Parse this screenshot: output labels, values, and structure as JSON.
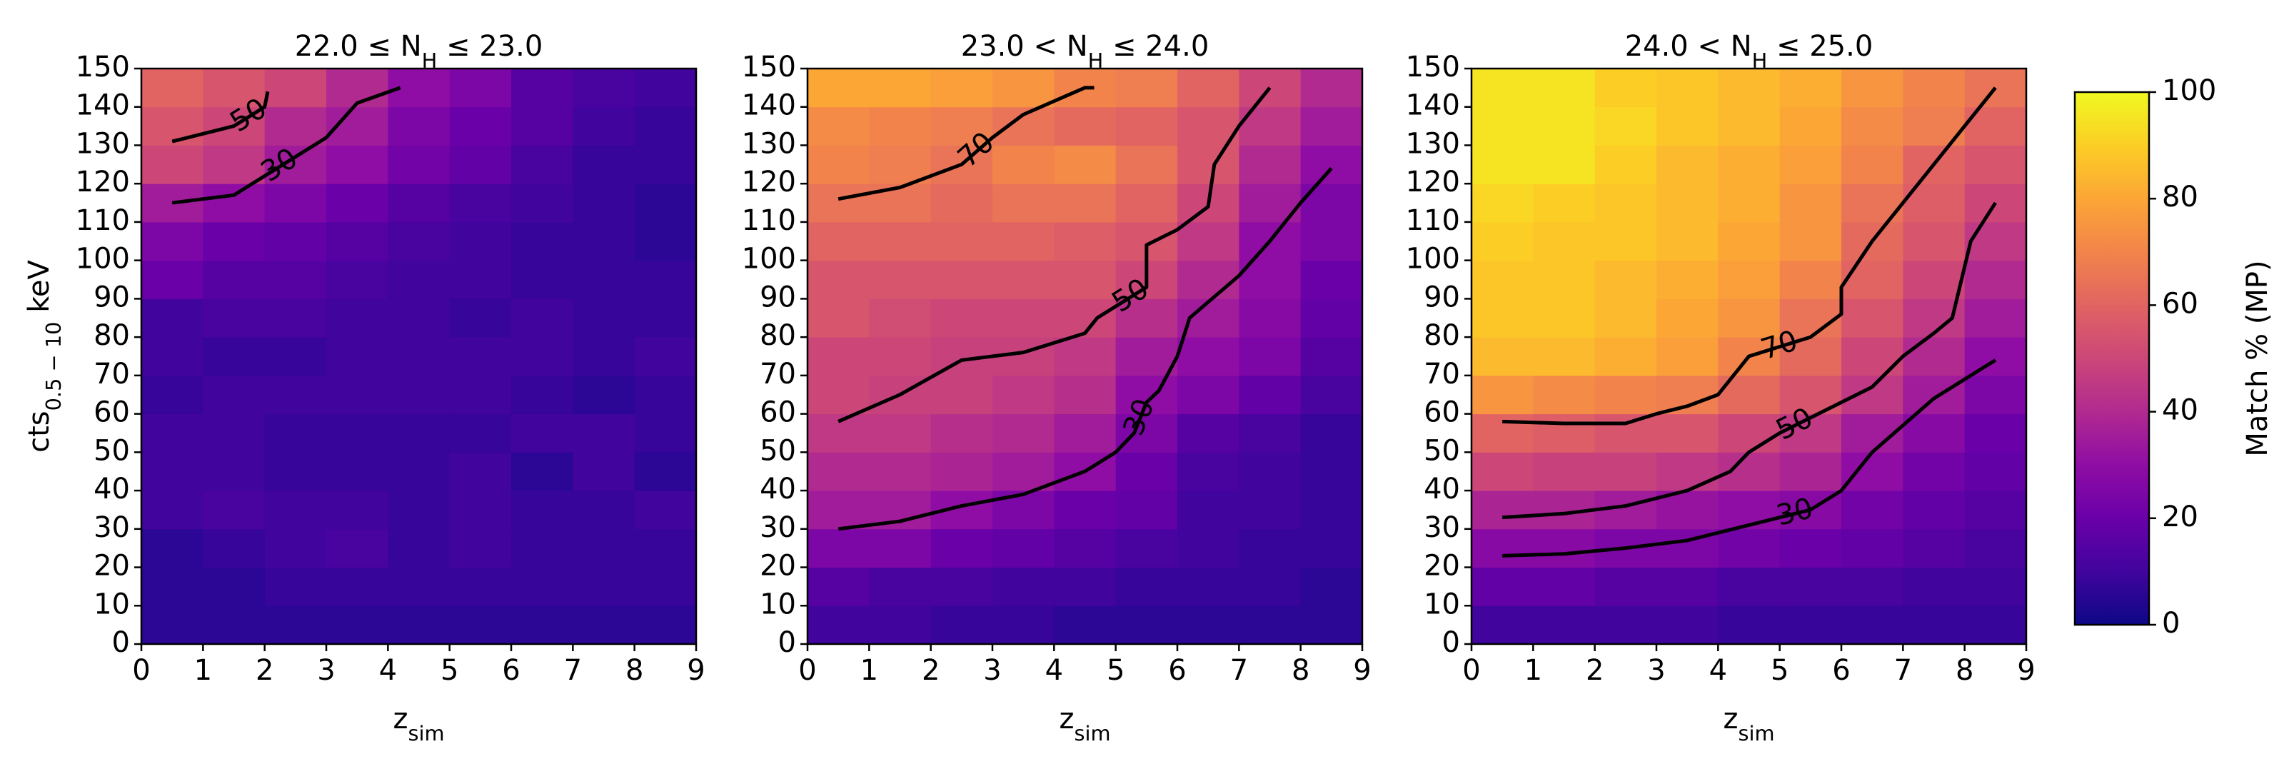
{
  "chart_data": [
    {
      "type": "heatmap",
      "title": [
        "22.0 ≤ N",
        "H",
        " ≤ 23.0"
      ],
      "xlabel": [
        "z",
        "sim"
      ],
      "ylabel": [
        "cts",
        "0.5 − 10",
        " keV"
      ],
      "xlim": [
        0,
        9
      ],
      "ylim": [
        0,
        150
      ],
      "xticks": [
        0,
        1,
        2,
        3,
        4,
        5,
        6,
        7,
        8,
        9
      ],
      "yticks": [
        0,
        10,
        20,
        30,
        40,
        50,
        60,
        70,
        80,
        90,
        100,
        110,
        120,
        130,
        140,
        150
      ],
      "colormap": "plasma",
      "clim": [
        0,
        100
      ],
      "values": [
        [
          6,
          6,
          6,
          6,
          6,
          6,
          6,
          6,
          6
        ],
        [
          6,
          6,
          8,
          8,
          8,
          8,
          8,
          8,
          8
        ],
        [
          6,
          8,
          10,
          12,
          8,
          10,
          8,
          8,
          8
        ],
        [
          10,
          12,
          10,
          10,
          8,
          10,
          8,
          8,
          10
        ],
        [
          10,
          10,
          8,
          8,
          8,
          10,
          6,
          10,
          6
        ],
        [
          10,
          10,
          8,
          8,
          8,
          8,
          10,
          10,
          8
        ],
        [
          8,
          10,
          10,
          10,
          10,
          10,
          8,
          6,
          8
        ],
        [
          10,
          8,
          8,
          10,
          10,
          10,
          10,
          8,
          10
        ],
        [
          10,
          12,
          12,
          10,
          10,
          8,
          10,
          8,
          8
        ],
        [
          20,
          15,
          15,
          12,
          10,
          10,
          8,
          8,
          8
        ],
        [
          25,
          20,
          18,
          15,
          12,
          10,
          8,
          8,
          6
        ],
        [
          35,
          30,
          25,
          20,
          15,
          12,
          10,
          8,
          6
        ],
        [
          50,
          45,
          35,
          30,
          22,
          18,
          12,
          8,
          8
        ],
        [
          55,
          50,
          40,
          35,
          25,
          20,
          15,
          10,
          8
        ],
        [
          60,
          55,
          50,
          40,
          30,
          25,
          15,
          12,
          10
        ]
      ],
      "contours": [
        {
          "level": 50,
          "x": [
            0.5,
            1.5,
            2,
            2.05
          ],
          "y": [
            131,
            135,
            140,
            144
          ]
        },
        {
          "level": 30,
          "x": [
            0.5,
            1.5,
            2,
            2.5,
            3,
            3.5,
            4.2
          ],
          "y": [
            115,
            117,
            122,
            127,
            132,
            141,
            145
          ]
        }
      ]
    },
    {
      "type": "heatmap",
      "title": [
        "23.0 < N",
        "H",
        " ≤ 24.0"
      ],
      "xlabel": [
        "z",
        "sim"
      ],
      "xlim": [
        0,
        9
      ],
      "ylim": [
        0,
        150
      ],
      "xticks": [
        0,
        1,
        2,
        3,
        4,
        5,
        6,
        7,
        8,
        9
      ],
      "yticks": [
        0,
        10,
        20,
        30,
        40,
        50,
        60,
        70,
        80,
        90,
        100,
        110,
        120,
        130,
        140,
        150
      ],
      "colormap": "plasma",
      "clim": [
        0,
        100
      ],
      "values": [
        [
          10,
          10,
          8,
          8,
          6,
          6,
          6,
          6,
          6
        ],
        [
          15,
          12,
          12,
          10,
          10,
          8,
          8,
          8,
          6
        ],
        [
          25,
          25,
          20,
          18,
          15,
          12,
          10,
          8,
          8
        ],
        [
          35,
          35,
          30,
          25,
          20,
          18,
          10,
          10,
          8
        ],
        [
          40,
          40,
          38,
          35,
          30,
          20,
          12,
          10,
          8
        ],
        [
          45,
          45,
          42,
          40,
          35,
          25,
          15,
          12,
          8
        ],
        [
          50,
          48,
          48,
          45,
          42,
          30,
          25,
          18,
          12
        ],
        [
          50,
          50,
          48,
          48,
          45,
          35,
          30,
          25,
          15
        ],
        [
          55,
          52,
          50,
          50,
          50,
          42,
          35,
          28,
          18
        ],
        [
          55,
          55,
          55,
          55,
          55,
          50,
          40,
          30,
          20
        ],
        [
          60,
          60,
          60,
          60,
          58,
          55,
          45,
          30,
          25
        ],
        [
          65,
          65,
          62,
          65,
          65,
          60,
          50,
          35,
          25
        ],
        [
          70,
          68,
          65,
          70,
          72,
          65,
          55,
          40,
          30
        ],
        [
          72,
          70,
          68,
          65,
          62,
          60,
          55,
          45,
          35
        ],
        [
          80,
          80,
          78,
          75,
          70,
          68,
          60,
          50,
          40
        ]
      ],
      "contours": [
        {
          "level": 70,
          "x": [
            0.5,
            1.5,
            2.5,
            3,
            3.5,
            4.5,
            4.65
          ],
          "y": [
            116,
            119,
            125,
            132,
            138,
            145,
            145
          ]
        },
        {
          "level": 50,
          "x": [
            0.5,
            1.5,
            2.5,
            3.5,
            4.5,
            4.7,
            5,
            5.5,
            5.5,
            6,
            6.5,
            6.6,
            7,
            7.5
          ],
          "y": [
            58,
            65,
            74,
            76,
            81,
            85,
            88,
            93,
            104,
            108,
            114,
            125,
            135,
            145
          ]
        },
        {
          "level": 30,
          "x": [
            0.5,
            1.5,
            2.5,
            3.5,
            4.5,
            5,
            5.3,
            5.5,
            5.7,
            6,
            6.2,
            7,
            7.5,
            8,
            8.5
          ],
          "y": [
            30,
            32,
            36,
            39,
            45,
            50,
            55,
            63,
            66,
            75,
            85,
            96,
            105,
            115,
            124
          ]
        }
      ]
    },
    {
      "type": "heatmap",
      "title": [
        "24.0 < N",
        "H",
        " ≤ 25.0"
      ],
      "xlabel": [
        "z",
        "sim"
      ],
      "xlim": [
        0,
        9
      ],
      "ylim": [
        0,
        150
      ],
      "xticks": [
        0,
        1,
        2,
        3,
        4,
        5,
        6,
        7,
        8,
        9
      ],
      "yticks": [
        0,
        10,
        20,
        30,
        40,
        50,
        60,
        70,
        80,
        90,
        100,
        110,
        120,
        130,
        140,
        150
      ],
      "colormap": "plasma",
      "clim": [
        0,
        100
      ],
      "values": [
        [
          10,
          10,
          10,
          10,
          8,
          8,
          8,
          8,
          8
        ],
        [
          18,
          18,
          15,
          15,
          12,
          12,
          12,
          10,
          10
        ],
        [
          28,
          28,
          25,
          25,
          22,
          20,
          18,
          15,
          12
        ],
        [
          38,
          38,
          35,
          32,
          30,
          28,
          22,
          18,
          15
        ],
        [
          50,
          48,
          48,
          45,
          42,
          38,
          30,
          22,
          18
        ],
        [
          60,
          58,
          55,
          55,
          50,
          45,
          35,
          28,
          20
        ],
        [
          75,
          72,
          70,
          68,
          62,
          55,
          45,
          35,
          25
        ],
        [
          85,
          85,
          82,
          78,
          70,
          62,
          50,
          40,
          30
        ],
        [
          88,
          88,
          85,
          80,
          75,
          65,
          55,
          45,
          35
        ],
        [
          88,
          88,
          85,
          82,
          78,
          70,
          60,
          50,
          40
        ],
        [
          90,
          88,
          88,
          85,
          80,
          75,
          62,
          55,
          45
        ],
        [
          92,
          90,
          88,
          85,
          82,
          75,
          65,
          58,
          50
        ],
        [
          95,
          95,
          90,
          85,
          82,
          78,
          70,
          60,
          55
        ],
        [
          95,
          95,
          92,
          88,
          85,
          80,
          72,
          68,
          60
        ],
        [
          95,
          95,
          90,
          88,
          85,
          82,
          75,
          70,
          65
        ]
      ],
      "contours": [
        {
          "level": 70,
          "x": [
            0.5,
            1.5,
            2.5,
            3,
            3.5,
            4,
            4.5,
            5.5,
            6,
            6,
            6.5,
            7,
            7.5,
            8,
            8.5
          ],
          "y": [
            58,
            57.5,
            57.5,
            60,
            62,
            65,
            75,
            80,
            86,
            93,
            105,
            115,
            125,
            135,
            145
          ]
        },
        {
          "level": 50,
          "x": [
            0.5,
            1.5,
            2.5,
            3.5,
            4.2,
            4.5,
            5,
            5.5,
            6,
            6.5,
            7,
            7.5,
            7.8,
            8.1,
            8.5
          ],
          "y": [
            33,
            34,
            36,
            40,
            45,
            50,
            55,
            59,
            63,
            67,
            75,
            81,
            85,
            105,
            115
          ]
        },
        {
          "level": 30,
          "x": [
            0.5,
            1.5,
            2.5,
            3.5,
            4.5,
            5,
            5.5,
            6,
            6.5,
            7,
            7.5,
            8,
            8.5
          ],
          "y": [
            23,
            23.5,
            25,
            27,
            31,
            33,
            35,
            40,
            50,
            57,
            64,
            69,
            74
          ]
        }
      ]
    },
    {
      "type": "colorbar",
      "label": "Match % (MP)",
      "colormap": "plasma",
      "clim": [
        0,
        100
      ],
      "ticks": [
        0,
        20,
        40,
        60,
        80,
        100
      ]
    }
  ]
}
